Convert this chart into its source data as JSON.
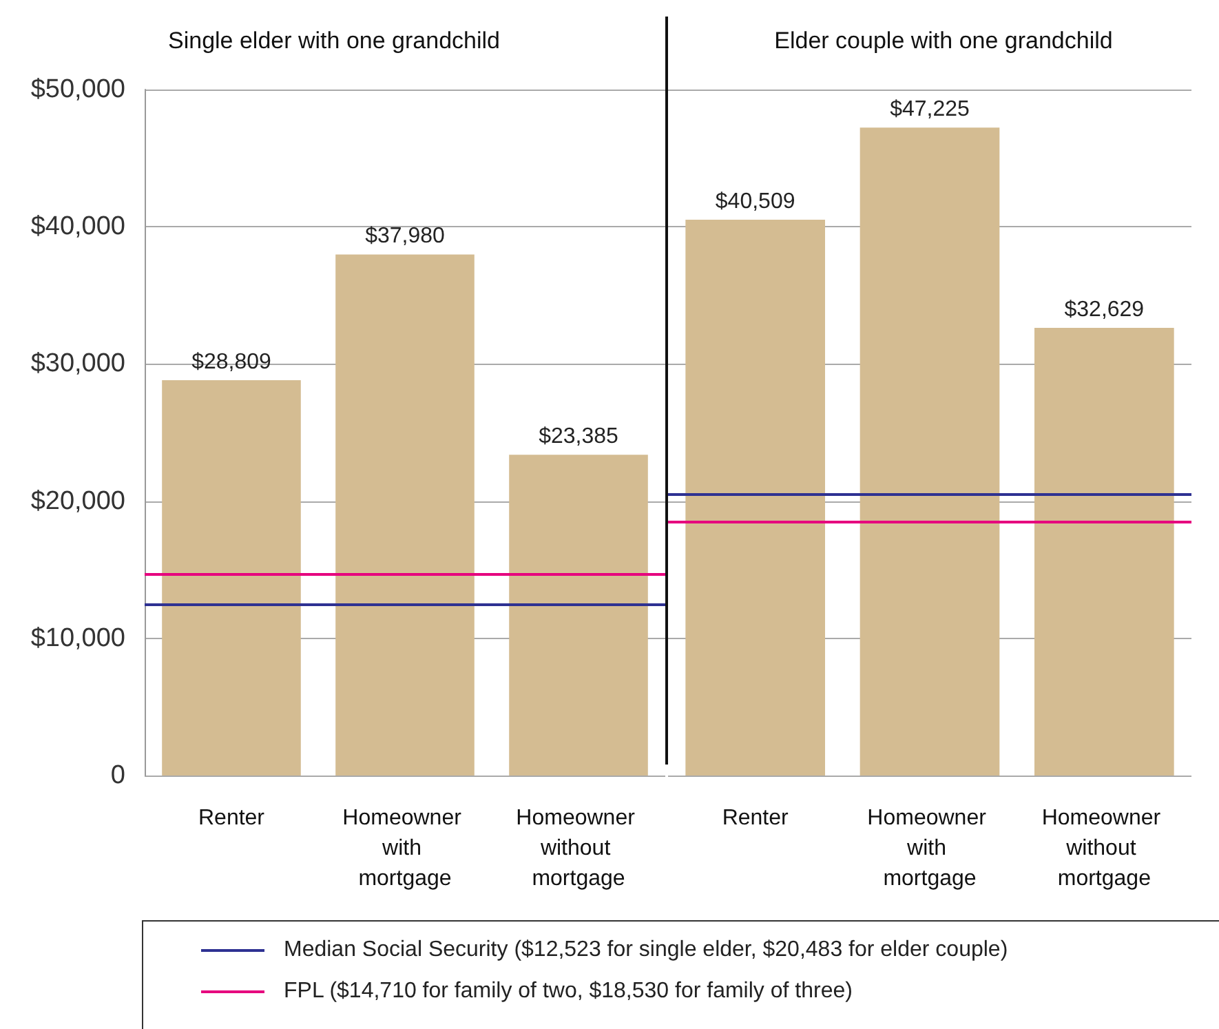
{
  "chart_data": [
    {
      "type": "bar",
      "title": "Single elder with one grandchild",
      "categories": [
        "Renter",
        "Homeowner with mortgage",
        "Homeowner without mortgage"
      ],
      "values": [
        28809,
        37980,
        23385
      ],
      "color": "#d4bc92",
      "value_labels": [
        "$28,809",
        "$37,980",
        "$23,385"
      ],
      "ylim": [
        0,
        50000
      ],
      "yticks": [
        0,
        {
          "value": 10000,
          "label": "$10,000"
        },
        {
          "value": 20000,
          "label": "$20,000"
        },
        {
          "value": 30000,
          "label": "$30,000"
        },
        {
          "value": 40000,
          "label": "$40,000"
        },
        {
          "value": 50000,
          "label": "$50,000"
        }
      ],
      "grid": "y",
      "legend": "bottom",
      "ref_lines": [
        {
          "axis": "y",
          "value": 12523,
          "label": "Median Social Security ($12,523 for single elder, $20,483 for elder couple)",
          "color": "#2e3192"
        },
        {
          "axis": "y",
          "value": 14710,
          "label": "FPL ($14,710 for family of two, $18,530 for family of three)",
          "color": "#e6007e"
        }
      ]
    },
    {
      "type": "bar",
      "title": "Elder couple with one grandchild",
      "categories": [
        "Renter",
        "Homeowner with mortgage",
        "Homeowner without mortgage"
      ],
      "values": [
        40509,
        47225,
        32629
      ],
      "color": "#d4bc92",
      "value_labels": [
        "$40,509",
        "$47,225",
        "$32,629"
      ],
      "ylim": [
        0,
        50000
      ],
      "yticks": [
        {
          "value": 0,
          "label": null
        },
        {
          "value": 10000,
          "label": null
        },
        {
          "value": 20000,
          "label": null
        },
        {
          "value": 30000,
          "label": null
        },
        {
          "value": 40000,
          "label": null
        },
        {
          "value": 50000,
          "label": null
        }
      ],
      "grid": "y",
      "tick_labels": "x",
      "ref_lines": [
        {
          "axis": "y",
          "value": 20483,
          "color": "#2e3192"
        },
        {
          "axis": "y",
          "value": 18530,
          "color": "#e6007e"
        }
      ]
    }
  ]
}
